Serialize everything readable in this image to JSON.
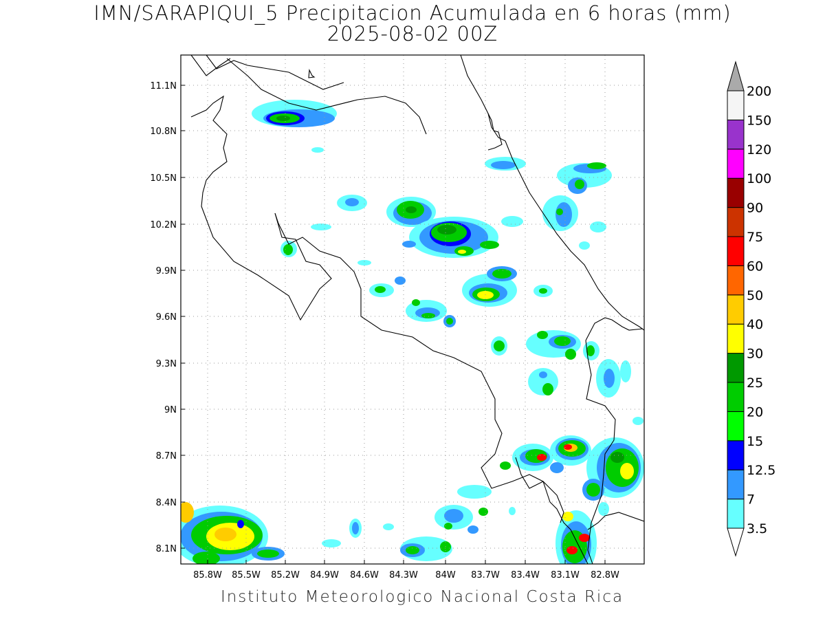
{
  "title_line1": "IMN/SARAPIQUI_5 Precipitacion Acumulada en 6 horas (mm)",
  "title_line2": "2025-08-02 00Z",
  "footer": "Instituto Meteorologico Nacional Costa Rica",
  "map": {
    "lon_labels": [
      "85.8W",
      "85.5W",
      "85.2W",
      "84.9W",
      "84.6W",
      "84.3W",
      "84W",
      "83.7W",
      "83.4W",
      "83.1W",
      "82.8W"
    ],
    "lat_labels": [
      "11.1N",
      "10.8N",
      "10.5N",
      "10.2N",
      "9.9N",
      "9.6N",
      "9.3N",
      "9N",
      "8.7N",
      "8.4N",
      "8.1N"
    ]
  },
  "colorbar": {
    "labels": [
      "3.5",
      "7",
      "12.5",
      "15",
      "20",
      "25",
      "30",
      "40",
      "50",
      "60",
      "75",
      "90",
      "100",
      "120",
      "150",
      "200"
    ],
    "colors": {
      "c3_5": "#66ffff",
      "c7": "#3399ff",
      "c12_5": "#0000ff",
      "c15": "#00ff00",
      "c20": "#00cc00",
      "c25": "#009900",
      "c30": "#ffff00",
      "c40": "#ffcc00",
      "c50": "#ff6600",
      "c60": "#ff0000",
      "c75": "#cc3300",
      "c90": "#990000",
      "c100": "#ff00ff",
      "c120": "#9933cc",
      "c150": "#f5f5f5",
      "c200": "#aaaaaa"
    }
  }
}
